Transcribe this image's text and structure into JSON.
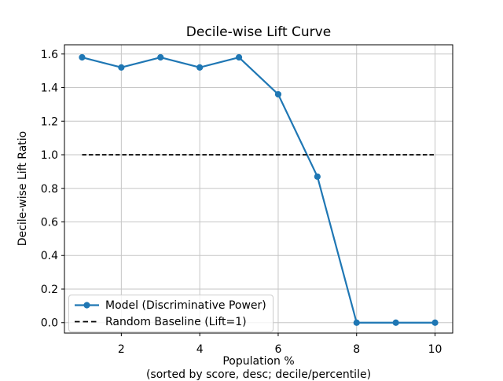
{
  "chart_data": {
    "type": "line",
    "title": "Decile-wise Lift Curve",
    "xlabel": "Population %",
    "xlabel_note": "(sorted by score, desc; decile/percentile)",
    "ylabel": "Decile-wise Lift Ratio",
    "x": [
      1,
      2,
      3,
      4,
      5,
      6,
      7,
      8,
      9,
      10
    ],
    "series": [
      {
        "name": "Model (Discriminative Power)",
        "values": [
          1.58,
          1.52,
          1.58,
          1.52,
          1.58,
          1.36,
          0.87,
          0.0,
          0.0,
          0.0
        ],
        "color": "#1f77b4",
        "line_style": "solid",
        "marker": "circle"
      },
      {
        "name": "Random Baseline (Lift=1)",
        "values": [
          1.0,
          1.0,
          1.0,
          1.0,
          1.0,
          1.0,
          1.0,
          1.0,
          1.0,
          1.0
        ],
        "color": "#000000",
        "line_style": "dashed",
        "marker": "none"
      }
    ],
    "xticks": [
      2,
      4,
      6,
      8,
      10
    ],
    "xtick_labels": [
      "2",
      "4",
      "6",
      "8",
      "10"
    ],
    "yticks": [
      0.0,
      0.2,
      0.4,
      0.6,
      0.8,
      1.0,
      1.2,
      1.4,
      1.6
    ],
    "ytick_labels": [
      "0.0",
      "0.2",
      "0.4",
      "0.6",
      "0.8",
      "1.0",
      "1.2",
      "1.4",
      "1.6"
    ],
    "xlim": [
      0.55,
      10.45
    ],
    "ylim": [
      -0.062,
      1.655
    ],
    "grid": true,
    "legend_position": "lower left",
    "colors": {
      "grid": "#c6c6c6",
      "axis": "#000000",
      "text": "#000000",
      "background": "#ffffff"
    }
  }
}
